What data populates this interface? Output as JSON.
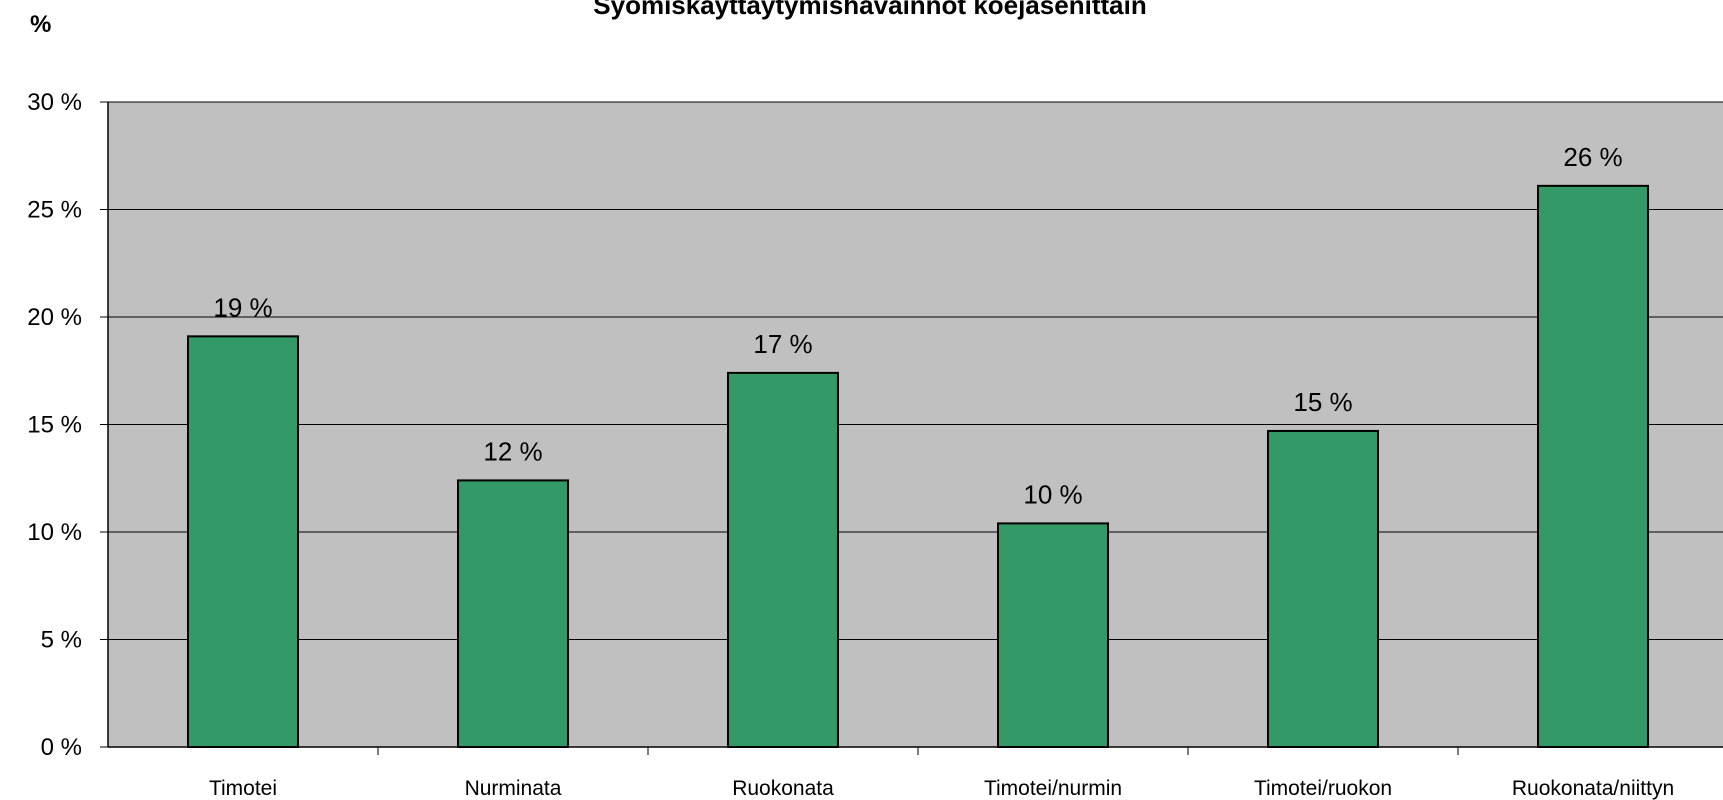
{
  "chart_data": {
    "type": "bar",
    "title": "Syömiskäyttäytymishavainnot koejäsenittäin",
    "y_label": "%",
    "categories": [
      "Timotei",
      "Nurminata",
      "Ruokonata",
      "Timotei/nurmin",
      "Timotei/ruokon",
      "Ruokonata/niittyn"
    ],
    "values": [
      19.1,
      12.4,
      17.4,
      10.4,
      14.7,
      26.1
    ],
    "value_labels": [
      "19 %",
      "12 %",
      "17 %",
      "10 %",
      "15 %",
      "26 %"
    ],
    "color": "#339966",
    "ylim": [
      0,
      30
    ],
    "yticks": [
      {
        "value": 0,
        "label": "0 %"
      },
      {
        "value": 5,
        "label": "5 %"
      },
      {
        "value": 10,
        "label": "10 %"
      },
      {
        "value": 15,
        "label": "15 %"
      },
      {
        "value": 20,
        "label": "20 %"
      },
      {
        "value": 25,
        "label": "25 %"
      },
      {
        "value": 30,
        "label": "30 %"
      }
    ],
    "grid": true
  }
}
